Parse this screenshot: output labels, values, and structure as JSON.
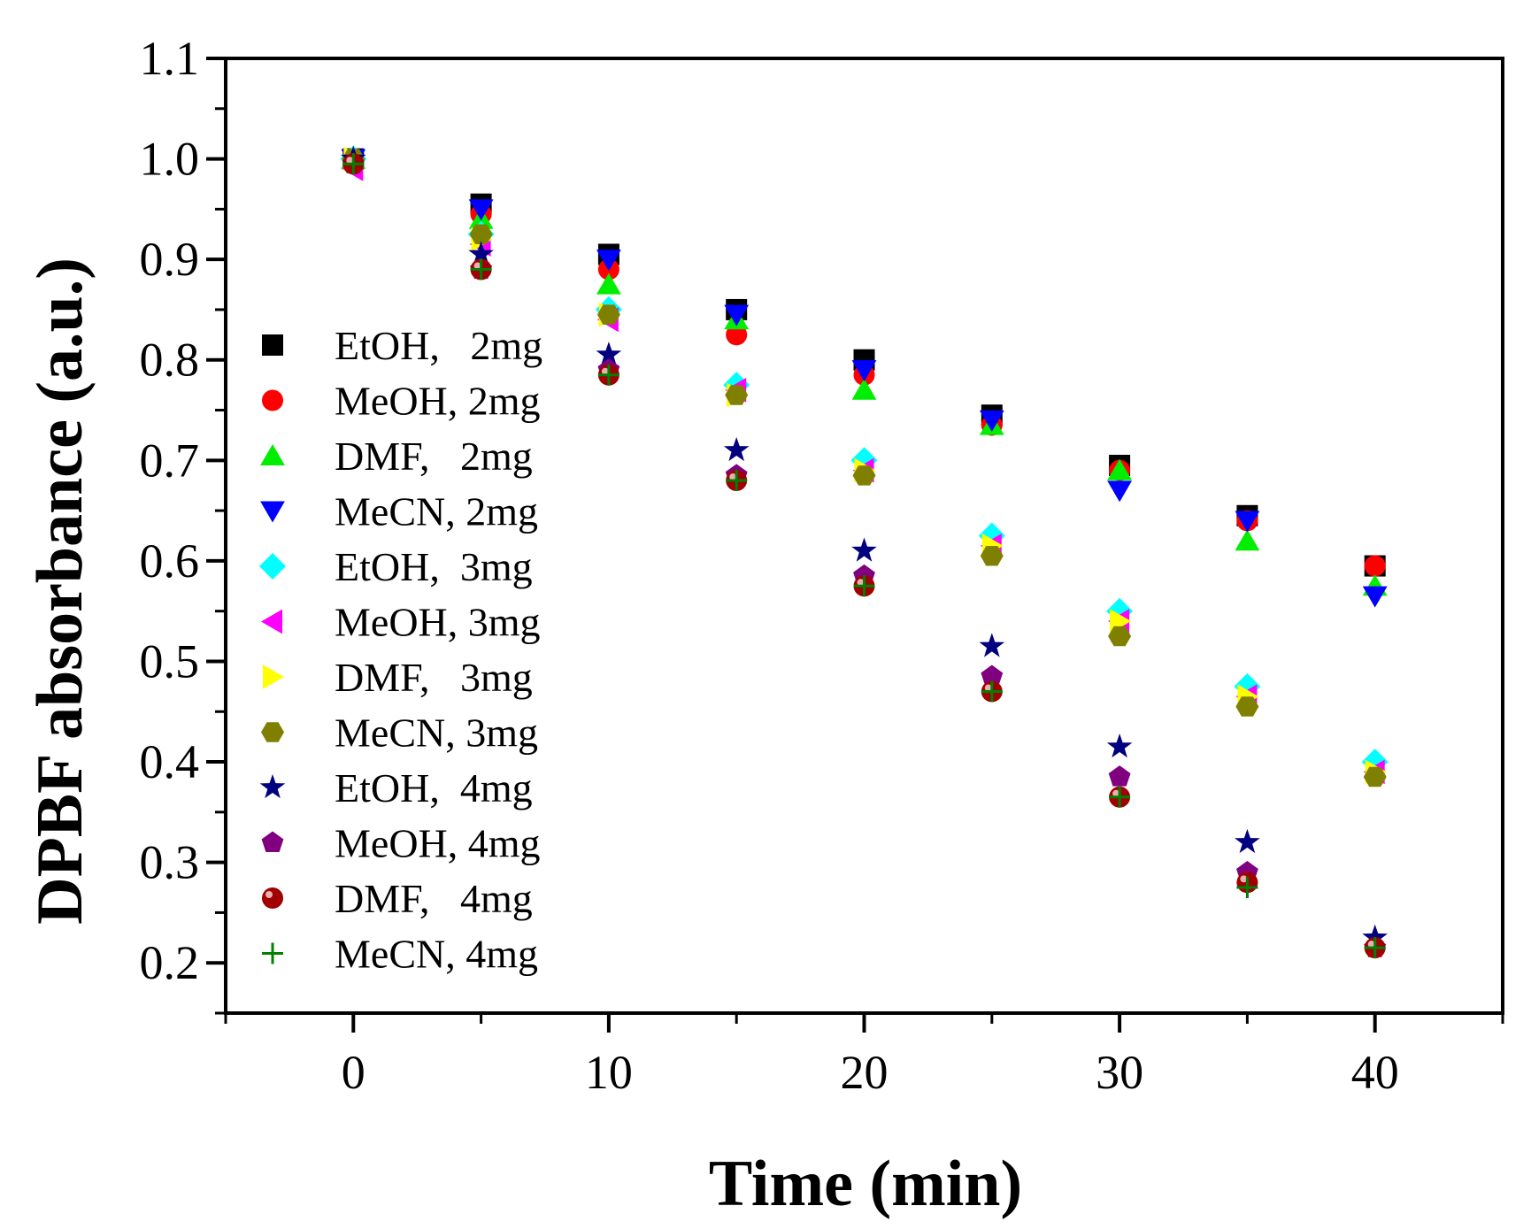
{
  "chart_data": {
    "type": "scatter",
    "title": "",
    "xlabel": "Time (min)",
    "ylabel": "DPBF absorbance (a.u.)",
    "xlim": [
      -5,
      45
    ],
    "ylim": [
      0.15,
      1.1
    ],
    "xticks": [
      0,
      10,
      20,
      30,
      40
    ],
    "xtick_labels": [
      "0",
      "10",
      "20",
      "30",
      "40"
    ],
    "yticks": [
      0.2,
      0.3,
      0.4,
      0.5,
      0.6,
      0.7,
      0.8,
      0.9,
      1.0,
      1.1
    ],
    "ytick_labels": [
      "0.2",
      "0.3",
      "0.4",
      "0.5",
      "0.6",
      "0.7",
      "0.8",
      "0.9",
      "1.0",
      "1.1"
    ],
    "grid": false,
    "legend_position": "left",
    "x": [
      0,
      5,
      10,
      15,
      20,
      25,
      30,
      35,
      40
    ],
    "series": [
      {
        "name": "EtOH,   2mg",
        "marker": "square",
        "color": "#000000",
        "values": [
          1.0,
          0.955,
          0.905,
          0.85,
          0.8,
          0.745,
          0.695,
          0.645,
          0.595
        ]
      },
      {
        "name": "MeOH, 2mg",
        "marker": "circle",
        "color": "#ff0000",
        "values": [
          1.0,
          0.945,
          0.89,
          0.825,
          0.785,
          0.735,
          0.69,
          0.64,
          0.595
        ]
      },
      {
        "name": "DMF,   2mg",
        "marker": "triangle-up",
        "color": "#00ee00",
        "values": [
          1.0,
          0.94,
          0.875,
          0.84,
          0.77,
          0.735,
          0.69,
          0.62,
          0.575
        ]
      },
      {
        "name": "MeCN, 2mg",
        "marker": "triangle-down",
        "color": "#0000ff",
        "values": [
          1.0,
          0.95,
          0.9,
          0.845,
          0.79,
          0.74,
          0.67,
          0.64,
          0.565
        ]
      },
      {
        "name": "EtOH,  3mg",
        "marker": "diamond",
        "color": "#00ffff",
        "values": [
          1.0,
          0.925,
          0.85,
          0.775,
          0.7,
          0.625,
          0.55,
          0.475,
          0.4
        ]
      },
      {
        "name": "MeOH, 3mg",
        "marker": "triangle-left",
        "color": "#ff00ff",
        "values": [
          0.99,
          0.915,
          0.84,
          0.77,
          0.69,
          0.615,
          0.54,
          0.465,
          0.39
        ]
      },
      {
        "name": "DMF,   3mg",
        "marker": "triangle-right",
        "color": "#ffff00",
        "values": [
          1.0,
          0.92,
          0.845,
          0.765,
          0.69,
          0.615,
          0.54,
          0.465,
          0.39
        ]
      },
      {
        "name": "MeCN, 3mg",
        "marker": "hexagon",
        "color": "#808000",
        "values": [
          1.0,
          0.925,
          0.845,
          0.765,
          0.685,
          0.605,
          0.525,
          0.455,
          0.385
        ]
      },
      {
        "name": "EtOH,  4mg",
        "marker": "star",
        "color": "#000080",
        "values": [
          1.0,
          0.905,
          0.805,
          0.71,
          0.61,
          0.515,
          0.415,
          0.32,
          0.225
        ]
      },
      {
        "name": "MeOH, 4mg",
        "marker": "pentagon",
        "color": "#800080",
        "values": [
          0.995,
          0.89,
          0.79,
          0.685,
          0.585,
          0.485,
          0.385,
          0.29,
          0.215
        ]
      },
      {
        "name": "DMF,   4mg",
        "marker": "ball",
        "color": "#a00000",
        "values": [
          0.995,
          0.89,
          0.785,
          0.68,
          0.575,
          0.47,
          0.365,
          0.28,
          0.215
        ]
      },
      {
        "name": "MeCN, 4mg",
        "marker": "plus",
        "color": "#008000",
        "values": [
          0.995,
          0.89,
          0.785,
          0.68,
          0.575,
          0.47,
          0.365,
          0.275,
          0.215
        ]
      }
    ]
  }
}
